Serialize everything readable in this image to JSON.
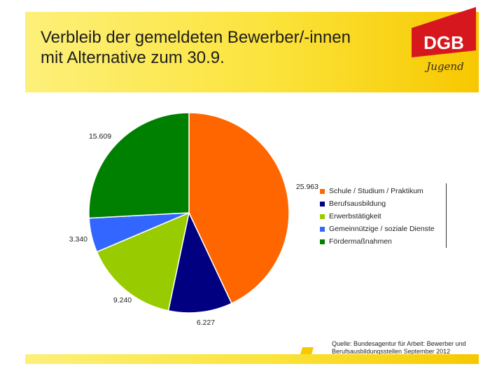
{
  "header": {
    "title": "Verbleib der gemeldeten Bewerber/-innen\nmit Alternative zum 30.9.",
    "logo_text": "DGB",
    "logo_script": "Jugend",
    "logo_color": "#d6181e"
  },
  "source_note": "Quelle: Bundesagentur für Arbeit: Bewerber und Berufsausbildungsstellen September 2012",
  "chart_data": {
    "type": "pie",
    "title": "",
    "legend_position": "right",
    "slices": [
      {
        "label": "Schule / Studium / Praktikum",
        "value": 25963,
        "value_label": "25.963",
        "color": "#ff6600"
      },
      {
        "label": "Berufsausbildung",
        "value": 6227,
        "value_label": "6.227",
        "color": "#000080"
      },
      {
        "label": "Erwerbstätigkeit",
        "value": 9240,
        "value_label": "9.240",
        "color": "#99cc00"
      },
      {
        "label": "Gemeinnützige / soziale Dienste",
        "value": 3340,
        "value_label": "3.340",
        "color": "#3366ff"
      },
      {
        "label": "Fördermaßnahmen",
        "value": 15609,
        "value_label": "15.609",
        "color": "#008000"
      }
    ]
  }
}
